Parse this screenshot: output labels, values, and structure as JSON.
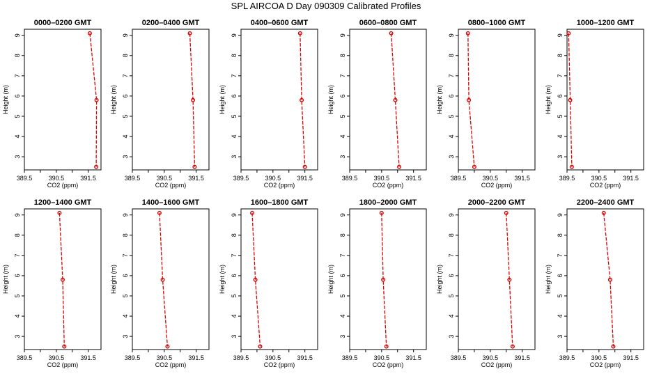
{
  "figure": {
    "title": "SPL AIRCOA D  Day 090309  Calibrated Profiles"
  },
  "style": {
    "line_color": "#dd0000",
    "marker_color": "#dd0000"
  },
  "chart_data": [
    {
      "type": "line",
      "title": "0000–0200 GMT",
      "xlabel": "CO2 (ppm)",
      "ylabel": "Height (m)",
      "xlim": [
        389.5,
        391.9
      ],
      "ylim": [
        2.35,
        9.3
      ],
      "xticks": [
        "389.5",
        "390.5",
        "391.5"
      ],
      "yticks": [
        "3",
        "4",
        "5",
        "6",
        "7",
        "8",
        "9"
      ],
      "series": [
        {
          "x": [
            391.55,
            391.76,
            391.75
          ],
          "y": [
            9.1,
            5.8,
            2.5
          ]
        }
      ]
    },
    {
      "type": "line",
      "title": "0200–0400 GMT",
      "xlabel": "CO2 (ppm)",
      "ylabel": "Height (m)",
      "xlim": [
        389.5,
        391.9
      ],
      "ylim": [
        2.35,
        9.3
      ],
      "xticks": [
        "389.5",
        "390.5",
        "391.5"
      ],
      "yticks": [
        "3",
        "4",
        "5",
        "6",
        "7",
        "8",
        "9"
      ],
      "series": [
        {
          "x": [
            391.3,
            391.4,
            391.45
          ],
          "y": [
            9.1,
            5.8,
            2.5
          ]
        }
      ]
    },
    {
      "type": "line",
      "title": "0400–0600 GMT",
      "xlabel": "CO2 (ppm)",
      "ylabel": "Height (m)",
      "xlim": [
        389.5,
        391.9
      ],
      "ylim": [
        2.35,
        9.3
      ],
      "xticks": [
        "389.5",
        "390.5",
        "391.5"
      ],
      "yticks": [
        "3",
        "4",
        "5",
        "6",
        "7",
        "8",
        "9"
      ],
      "series": [
        {
          "x": [
            391.35,
            391.4,
            391.5
          ],
          "y": [
            9.1,
            5.8,
            2.5
          ]
        }
      ]
    },
    {
      "type": "line",
      "title": "0600–0800 GMT",
      "xlabel": "CO2 (ppm)",
      "ylabel": "Height (m)",
      "xlim": [
        389.5,
        391.9
      ],
      "ylim": [
        2.35,
        9.3
      ],
      "xticks": [
        "389.5",
        "390.5",
        "391.5"
      ],
      "yticks": [
        "3",
        "4",
        "5",
        "6",
        "7",
        "8",
        "9"
      ],
      "series": [
        {
          "x": [
            390.8,
            390.93,
            391.05
          ],
          "y": [
            9.1,
            5.8,
            2.5
          ]
        }
      ]
    },
    {
      "type": "line",
      "title": "0800–1000 GMT",
      "xlabel": "CO2 (ppm)",
      "ylabel": "Height (m)",
      "xlim": [
        389.5,
        391.9
      ],
      "ylim": [
        2.35,
        9.3
      ],
      "xticks": [
        "389.5",
        "390.5",
        "391.5"
      ],
      "yticks": [
        "3",
        "4",
        "5",
        "6",
        "7",
        "8",
        "9"
      ],
      "series": [
        {
          "x": [
            389.8,
            389.83,
            390.0
          ],
          "y": [
            9.1,
            5.8,
            2.5
          ]
        }
      ]
    },
    {
      "type": "line",
      "title": "1000–1200 GMT",
      "xlabel": "CO2 (ppm)",
      "ylabel": "Height (m)",
      "xlim": [
        389.5,
        391.9
      ],
      "ylim": [
        2.35,
        9.3
      ],
      "xticks": [
        "389.5",
        "390.5",
        "391.5"
      ],
      "yticks": [
        "3",
        "4",
        "5",
        "6",
        "7",
        "8",
        "9"
      ],
      "series": [
        {
          "x": [
            389.55,
            389.6,
            389.65
          ],
          "y": [
            9.1,
            5.8,
            2.5
          ]
        }
      ]
    },
    {
      "type": "line",
      "title": "1200–1400 GMT",
      "xlabel": "CO2 (ppm)",
      "ylabel": "Height (m)",
      "xlim": [
        389.5,
        391.9
      ],
      "ylim": [
        2.35,
        9.3
      ],
      "xticks": [
        "389.5",
        "390.5",
        "391.5"
      ],
      "yticks": [
        "3",
        "4",
        "5",
        "6",
        "7",
        "8",
        "9"
      ],
      "series": [
        {
          "x": [
            390.6,
            390.7,
            390.75
          ],
          "y": [
            9.1,
            5.8,
            2.5
          ]
        }
      ]
    },
    {
      "type": "line",
      "title": "1400–1600 GMT",
      "xlabel": "CO2 (ppm)",
      "ylabel": "Height (m)",
      "xlim": [
        389.5,
        391.9
      ],
      "ylim": [
        2.35,
        9.3
      ],
      "xticks": [
        "389.5",
        "390.5",
        "391.5"
      ],
      "yticks": [
        "3",
        "4",
        "5",
        "6",
        "7",
        "8",
        "9"
      ],
      "series": [
        {
          "x": [
            390.35,
            390.45,
            390.6
          ],
          "y": [
            9.1,
            5.8,
            2.5
          ]
        }
      ]
    },
    {
      "type": "line",
      "title": "1600–1800 GMT",
      "xlabel": "CO2 (ppm)",
      "ylabel": "Height (m)",
      "xlim": [
        389.5,
        391.9
      ],
      "ylim": [
        2.35,
        9.3
      ],
      "xticks": [
        "389.5",
        "390.5",
        "391.5"
      ],
      "yticks": [
        "3",
        "4",
        "5",
        "6",
        "7",
        "8",
        "9"
      ],
      "series": [
        {
          "x": [
            389.85,
            389.95,
            390.1
          ],
          "y": [
            9.1,
            5.8,
            2.5
          ]
        }
      ]
    },
    {
      "type": "line",
      "title": "1800–2000 GMT",
      "xlabel": "CO2 (ppm)",
      "ylabel": "Height (m)",
      "xlim": [
        389.5,
        391.9
      ],
      "ylim": [
        2.35,
        9.3
      ],
      "xticks": [
        "389.5",
        "390.5",
        "391.5"
      ],
      "yticks": [
        "3",
        "4",
        "5",
        "6",
        "7",
        "8",
        "9"
      ],
      "series": [
        {
          "x": [
            390.5,
            390.55,
            390.65
          ],
          "y": [
            9.1,
            5.8,
            2.5
          ]
        }
      ]
    },
    {
      "type": "line",
      "title": "2000–2200 GMT",
      "xlabel": "CO2 (ppm)",
      "ylabel": "Height (m)",
      "xlim": [
        389.5,
        391.9
      ],
      "ylim": [
        2.35,
        9.3
      ],
      "xticks": [
        "389.5",
        "390.5",
        "391.5"
      ],
      "yticks": [
        "3",
        "4",
        "5",
        "6",
        "7",
        "8",
        "9"
      ],
      "series": [
        {
          "x": [
            391.0,
            391.1,
            391.2
          ],
          "y": [
            9.1,
            5.8,
            2.5
          ]
        }
      ]
    },
    {
      "type": "line",
      "title": "2200–2400 GMT",
      "xlabel": "CO2 (ppm)",
      "ylabel": "Height (m)",
      "xlim": [
        389.5,
        391.9
      ],
      "ylim": [
        2.35,
        9.3
      ],
      "xticks": [
        "389.5",
        "390.5",
        "391.5"
      ],
      "yticks": [
        "3",
        "4",
        "5",
        "6",
        "7",
        "8",
        "9"
      ],
      "series": [
        {
          "x": [
            390.65,
            390.85,
            390.95
          ],
          "y": [
            9.1,
            5.8,
            2.5
          ]
        }
      ]
    }
  ]
}
